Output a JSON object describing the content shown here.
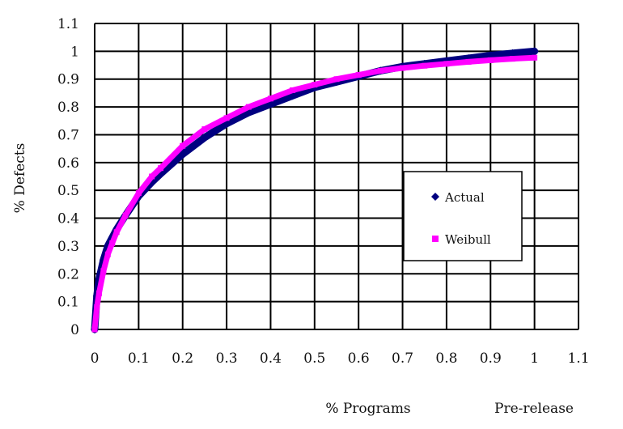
{
  "chart_data": {
    "type": "scatter",
    "title": "",
    "xlabel": "% Programs",
    "xlabel_note": "Pre-release",
    "ylabel": "% Defects",
    "xlim": [
      0,
      1.1
    ],
    "ylim": [
      0,
      1.1
    ],
    "x_ticks": [
      "0",
      "0.1",
      "0.2",
      "0.3",
      "0.4",
      "0.5",
      "0.6",
      "0.7",
      "0.8",
      "0.9",
      "1",
      "1.1"
    ],
    "y_ticks": [
      "0",
      "0.1",
      "0.2",
      "0.3",
      "0.4",
      "0.5",
      "0.6",
      "0.7",
      "0.8",
      "0.9",
      "1",
      "1.1"
    ],
    "grid": true,
    "legend_position": "right-center",
    "series": [
      {
        "name": "Actual",
        "color": "#000080",
        "marker": "diamond",
        "x": [
          0,
          0.005,
          0.01,
          0.02,
          0.03,
          0.04,
          0.05,
          0.07,
          0.1,
          0.13,
          0.15,
          0.2,
          0.25,
          0.3,
          0.35,
          0.4,
          0.45,
          0.5,
          0.55,
          0.6,
          0.65,
          0.7,
          0.75,
          0.8,
          0.85,
          0.9,
          0.95,
          1.0
        ],
        "y": [
          0,
          0.12,
          0.18,
          0.25,
          0.3,
          0.33,
          0.36,
          0.41,
          0.48,
          0.53,
          0.56,
          0.63,
          0.69,
          0.74,
          0.78,
          0.81,
          0.84,
          0.87,
          0.89,
          0.91,
          0.93,
          0.945,
          0.955,
          0.965,
          0.975,
          0.985,
          0.993,
          1.0
        ]
      },
      {
        "name": "Weibull",
        "color": "#ff00ff",
        "marker": "square",
        "x": [
          0,
          0.005,
          0.01,
          0.02,
          0.03,
          0.04,
          0.05,
          0.07,
          0.1,
          0.13,
          0.15,
          0.2,
          0.25,
          0.3,
          0.35,
          0.4,
          0.45,
          0.5,
          0.55,
          0.6,
          0.65,
          0.7,
          0.75,
          0.8,
          0.85,
          0.9,
          0.95,
          1.0
        ],
        "y": [
          0,
          0.08,
          0.13,
          0.21,
          0.27,
          0.31,
          0.35,
          0.41,
          0.49,
          0.55,
          0.58,
          0.66,
          0.72,
          0.76,
          0.8,
          0.83,
          0.86,
          0.88,
          0.9,
          0.915,
          0.93,
          0.94,
          0.948,
          0.955,
          0.962,
          0.968,
          0.973,
          0.977
        ]
      }
    ]
  }
}
